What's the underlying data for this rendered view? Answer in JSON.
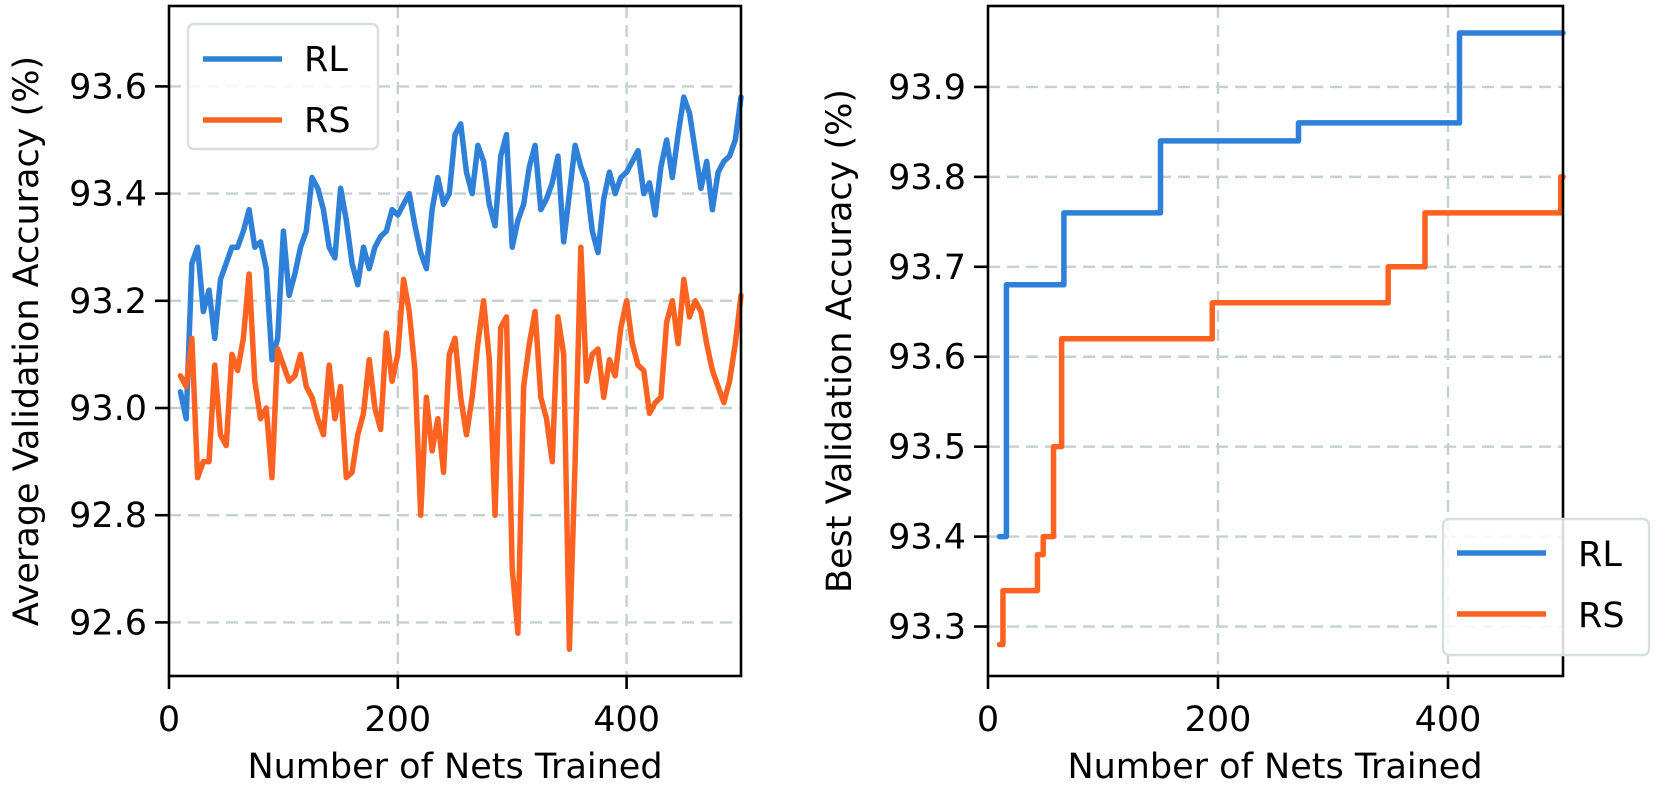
{
  "colors": {
    "RL": "#2f80d9",
    "RS": "#fe6220",
    "grid": "#c5d0d1"
  },
  "chart_data": [
    {
      "type": "line",
      "title": "",
      "xlabel": "Number of Nets Trained",
      "ylabel": "Average Validation Accuracy (%)",
      "xlim": [
        0,
        500
      ],
      "ylim": [
        92.5,
        93.75
      ],
      "xticks": [
        0,
        200,
        400
      ],
      "xtick_labels": [
        "0",
        "200",
        "400"
      ],
      "yticks": [
        92.6,
        92.8,
        93.0,
        93.2,
        93.4,
        93.6
      ],
      "ytick_labels": [
        "92.6",
        "92.8",
        "93.0",
        "93.2",
        "93.4",
        "93.6"
      ],
      "grid": true,
      "legend_position": "upper left",
      "x": [
        10,
        15,
        20,
        25,
        30,
        35,
        40,
        45,
        50,
        55,
        60,
        65,
        70,
        75,
        80,
        85,
        90,
        95,
        100,
        105,
        110,
        115,
        120,
        125,
        130,
        135,
        140,
        145,
        150,
        155,
        160,
        165,
        170,
        175,
        180,
        185,
        190,
        195,
        200,
        205,
        210,
        215,
        220,
        225,
        230,
        235,
        240,
        245,
        250,
        255,
        260,
        265,
        270,
        275,
        280,
        285,
        290,
        295,
        300,
        305,
        310,
        315,
        320,
        325,
        330,
        335,
        340,
        345,
        350,
        355,
        360,
        365,
        370,
        375,
        380,
        385,
        390,
        395,
        400,
        405,
        410,
        415,
        420,
        425,
        430,
        435,
        440,
        445,
        450,
        455,
        460,
        465,
        470,
        475,
        480,
        485,
        490,
        495,
        500
      ],
      "series": [
        {
          "name": "RL",
          "values": [
            93.03,
            92.98,
            93.27,
            93.3,
            93.18,
            93.22,
            93.13,
            93.24,
            93.27,
            93.3,
            93.3,
            93.33,
            93.37,
            93.3,
            93.31,
            93.26,
            93.09,
            93.13,
            93.33,
            93.21,
            93.25,
            93.3,
            93.33,
            93.43,
            93.41,
            93.37,
            93.3,
            93.28,
            93.41,
            93.35,
            93.27,
            93.23,
            93.3,
            93.26,
            93.3,
            93.32,
            93.33,
            93.37,
            93.36,
            93.38,
            93.4,
            93.34,
            93.29,
            93.26,
            93.37,
            93.43,
            93.38,
            93.4,
            93.51,
            93.53,
            93.44,
            93.4,
            93.49,
            93.46,
            93.38,
            93.34,
            93.47,
            93.51,
            93.3,
            93.35,
            93.38,
            93.45,
            93.49,
            93.37,
            93.39,
            93.42,
            93.47,
            93.31,
            93.4,
            93.49,
            93.45,
            93.42,
            93.33,
            93.29,
            93.39,
            93.44,
            93.4,
            93.43,
            93.44,
            93.46,
            93.48,
            93.4,
            93.42,
            93.36,
            93.45,
            93.5,
            93.43,
            93.51,
            93.58,
            93.55,
            93.48,
            93.41,
            93.46,
            93.37,
            93.44,
            93.46,
            93.47,
            93.5,
            93.58
          ]
        },
        {
          "name": "RS",
          "values": [
            93.06,
            93.04,
            93.13,
            92.87,
            92.9,
            92.9,
            93.08,
            92.95,
            92.93,
            93.1,
            93.07,
            93.13,
            93.25,
            93.05,
            92.98,
            93.0,
            92.87,
            93.11,
            93.08,
            93.05,
            93.06,
            93.1,
            93.04,
            93.02,
            92.98,
            92.95,
            93.08,
            92.98,
            93.04,
            92.87,
            92.88,
            92.95,
            92.99,
            93.09,
            93.0,
            92.96,
            93.14,
            93.05,
            93.1,
            93.24,
            93.18,
            93.07,
            92.8,
            93.02,
            92.92,
            92.98,
            92.88,
            93.1,
            93.13,
            93.02,
            92.95,
            93.02,
            93.12,
            93.2,
            93.09,
            92.8,
            93.15,
            93.17,
            92.7,
            92.58,
            93.04,
            93.12,
            93.18,
            93.02,
            92.98,
            92.9,
            93.17,
            93.1,
            92.55,
            92.9,
            93.3,
            93.05,
            93.1,
            93.11,
            93.02,
            93.09,
            93.06,
            93.15,
            93.2,
            93.12,
            93.08,
            93.07,
            92.99,
            93.01,
            93.02,
            93.16,
            93.2,
            93.12,
            93.24,
            93.17,
            93.2,
            93.18,
            93.12,
            93.07,
            93.04,
            93.01,
            93.05,
            93.12,
            93.21
          ]
        }
      ]
    },
    {
      "type": "line",
      "title": "",
      "xlabel": "Number of Nets Trained",
      "ylabel": "Best Validation Accuracy (%)",
      "xlim": [
        0,
        500
      ],
      "ylim": [
        93.245,
        93.99
      ],
      "xticks": [
        0,
        200,
        400
      ],
      "xtick_labels": [
        "0",
        "200",
        "400"
      ],
      "yticks": [
        93.3,
        93.4,
        93.5,
        93.6,
        93.7,
        93.8,
        93.9
      ],
      "ytick_labels": [
        "93.3",
        "93.4",
        "93.5",
        "93.6",
        "93.7",
        "93.8",
        "93.9"
      ],
      "grid": true,
      "legend_position": "lower right",
      "step": "post",
      "series": [
        {
          "name": "RL",
          "x": [
            10,
            16,
            66,
            150,
            270,
            410,
            500
          ],
          "values": [
            93.4,
            93.68,
            93.76,
            93.84,
            93.86,
            93.96,
            93.96
          ]
        },
        {
          "name": "RS",
          "x": [
            10,
            13,
            43,
            48,
            57,
            64,
            195,
            348,
            380,
            498,
            500
          ],
          "values": [
            93.28,
            93.34,
            93.38,
            93.4,
            93.5,
            93.62,
            93.66,
            93.7,
            93.76,
            93.8,
            93.8
          ]
        }
      ]
    }
  ],
  "left_chart": {
    "ylabel": "Average Validation Accuracy (%)",
    "xlabel": "Number of Nets Trained",
    "xtick_labels": [
      "0",
      "200",
      "400"
    ],
    "ytick_labels": [
      "92.6",
      "92.8",
      "93.0",
      "93.2",
      "93.4",
      "93.6"
    ],
    "legend": [
      {
        "label": "RL"
      },
      {
        "label": "RS"
      }
    ]
  },
  "right_chart": {
    "ylabel": "Best Validation Accuracy (%)",
    "xlabel": "Number of Nets Trained",
    "xtick_labels": [
      "0",
      "200",
      "400"
    ],
    "ytick_labels": [
      "93.3",
      "93.4",
      "93.5",
      "93.6",
      "93.7",
      "93.8",
      "93.9"
    ],
    "legend": [
      {
        "label": "RL"
      },
      {
        "label": "RS"
      }
    ]
  }
}
